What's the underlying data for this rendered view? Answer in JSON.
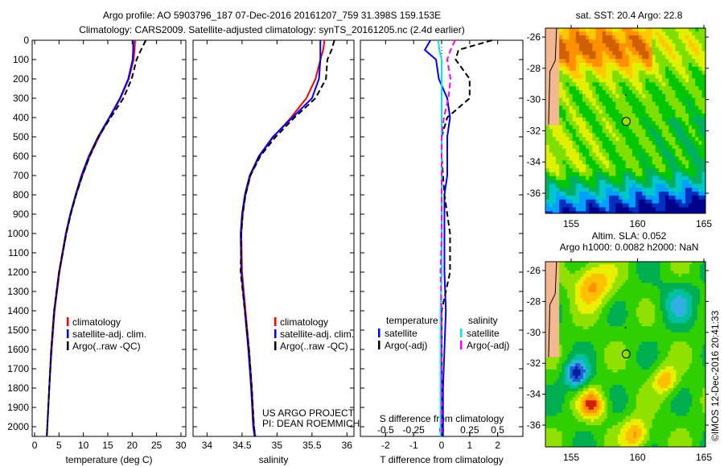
{
  "title_line1": "Argo profile: AO 5903796_187 07-Dec-2016 20161207_759 31.398S 159.153E",
  "title_line2": "Climatology: CARS2009. Satellite-adjusted climatology: synTS_20161205.nc (2.4d earlier)",
  "credit": "©IMOS 12-Dec-2016 20:41:33",
  "project_line1": "US ARGO PROJECT",
  "project_line2": "PI: DEAN ROEMMICH",
  "colors": {
    "climatology": "#ff0000",
    "satellite": "#0000ff",
    "argo": "#000000",
    "s_satellite": "#00e5ee",
    "s_argo": "#ff00ff"
  },
  "chart_data": [
    {
      "type": "line",
      "xlabel": "temperature (deg C)",
      "xlim": [
        -0.5,
        31
      ],
      "ylim": [
        2050,
        0
      ],
      "xticks": [
        "0",
        "5",
        "10",
        "15",
        "20",
        "25",
        "30"
      ],
      "yticks": [
        "0",
        "100",
        "200",
        "300",
        "400",
        "500",
        "600",
        "700",
        "800",
        "900",
        "1000",
        "1100",
        "1200",
        "1300",
        "1400",
        "1500",
        "1600",
        "1700",
        "1800",
        "1900",
        "2000"
      ],
      "legend": [
        "climatology",
        "satellite-adj. clim.",
        "Argo(..raw -QC)"
      ],
      "depth": [
        0,
        50,
        100,
        200,
        300,
        400,
        500,
        600,
        700,
        800,
        900,
        1000,
        1200,
        1400,
        1600,
        1800,
        2000,
        2050
      ],
      "series": [
        {
          "name": "climatology",
          "values": [
            20.6,
            20.5,
            20.3,
            19.3,
            17.6,
            15.4,
            13.2,
            11.3,
            9.8,
            8.5,
            7.4,
            6.5,
            5.1,
            4.1,
            3.5,
            3.0,
            2.6,
            2.5
          ]
        },
        {
          "name": "satellite-adj. clim.",
          "values": [
            20.2,
            20.2,
            20.1,
            19.2,
            17.5,
            15.3,
            13.0,
            11.1,
            9.6,
            8.4,
            7.3,
            6.4,
            5.0,
            4.0,
            3.4,
            3.0,
            2.6,
            2.5
          ]
        },
        {
          "name": "Argo(..raw -QC)",
          "values": [
            22.8,
            21.8,
            20.9,
            19.9,
            18.2,
            15.6,
            13.1,
            11.3,
            9.8,
            8.5,
            7.4,
            6.5,
            5.0,
            4.0,
            3.4,
            3.0,
            2.6,
            2.5
          ]
        }
      ]
    },
    {
      "type": "line",
      "xlabel": "salinity",
      "xlim": [
        33.8,
        36.1
      ],
      "ylim": [
        2050,
        0
      ],
      "xticks": [
        "34",
        "34.5",
        "35",
        "35.5",
        "36"
      ],
      "legend": [
        "climatology",
        "satellite-adj. clim.",
        "Argo(..raw -QC)"
      ],
      "depth": [
        0,
        50,
        100,
        200,
        300,
        400,
        500,
        600,
        700,
        800,
        900,
        1000,
        1200,
        1400,
        1600,
        1800,
        2000,
        2050
      ],
      "series": [
        {
          "name": "climatology",
          "values": [
            35.68,
            35.66,
            35.62,
            35.55,
            35.42,
            35.2,
            34.95,
            34.75,
            34.62,
            34.55,
            34.51,
            34.49,
            34.5,
            34.55,
            34.6,
            34.64,
            34.67,
            34.69
          ]
        },
        {
          "name": "satellite-adj. clim.",
          "values": [
            35.62,
            35.62,
            35.62,
            35.6,
            35.5,
            35.22,
            34.94,
            34.74,
            34.61,
            34.54,
            34.5,
            34.48,
            34.49,
            34.54,
            34.59,
            34.63,
            34.66,
            34.68
          ]
        },
        {
          "name": "Argo(..raw -QC)",
          "values": [
            35.82,
            35.78,
            35.72,
            35.7,
            35.55,
            35.25,
            34.98,
            34.76,
            34.62,
            34.55,
            34.51,
            34.49,
            34.48,
            34.54,
            34.6,
            34.64,
            34.67,
            34.69
          ]
        }
      ]
    },
    {
      "type": "line",
      "xlabel": "T difference from climatology",
      "xlabel2": "S difference from climatology",
      "xlim": [
        -2.9,
        2.9
      ],
      "ylim": [
        2050,
        0
      ],
      "xticks": [
        "-2",
        "-1",
        "0",
        "1",
        "2"
      ],
      "xticks2": [
        "-0.5",
        "-0.25",
        "0",
        "0.25",
        "0.5"
      ],
      "legend_temperature": {
        "title": "temperature",
        "items": [
          "satellite",
          "Argo(-adj)"
        ]
      },
      "legend_salinity": {
        "title": "salinity",
        "items": [
          "satellite",
          "Argo(-adj)"
        ]
      },
      "depth": [
        0,
        50,
        100,
        200,
        300,
        400,
        500,
        600,
        700,
        800,
        900,
        1000,
        1200,
        1400,
        1600,
        1800,
        2000,
        2050
      ],
      "series": [
        {
          "name": "temperature satellite",
          "values": [
            -0.4,
            -0.6,
            -0.2,
            -0.1,
            0.2,
            0.3,
            0.2,
            0.2,
            0.2,
            0.1,
            0.1,
            0.1,
            0.1,
            0.15,
            0.1,
            0.05,
            0.05,
            0.05
          ]
        },
        {
          "name": "temperature Argo(-adj)",
          "values": [
            1.8,
            0.6,
            0.5,
            1.0,
            1.0,
            0.2,
            0,
            0,
            0.05,
            0.1,
            0.2,
            0.3,
            0.3,
            0,
            0,
            0,
            0,
            0
          ]
        },
        {
          "name": "salinity satellite",
          "values": [
            -0.03,
            -0.02,
            0,
            0,
            0,
            0,
            0,
            0,
            0,
            0,
            0,
            0,
            0,
            -0.01,
            -0.01,
            -0.01,
            -0.01,
            -0.01
          ]
        },
        {
          "name": "salinity Argo(-adj)",
          "values": [
            0.12,
            0.08,
            0.05,
            0.08,
            0.06,
            0.02,
            0,
            0,
            0,
            0,
            0,
            0,
            -0.01,
            0,
            0,
            0,
            0,
            0
          ]
        }
      ]
    }
  ],
  "maps": [
    {
      "title_lines": [
        "sat. SST: 20.4  Argo: 22.8"
      ],
      "lon_ticks": [
        "155",
        "160",
        "165"
      ],
      "lat_ticks": [
        "-26",
        "-28",
        "-30",
        "-32",
        "-34",
        "-36"
      ],
      "kind": "sst"
    },
    {
      "title_lines": [
        "Altim. SLA: 0.052",
        "Argo h1000: 0.0082 h2000: NaN"
      ],
      "lon_ticks": [
        "155",
        "160",
        "165"
      ],
      "lat_ticks": [
        "-26",
        "-28",
        "-30",
        "-32",
        "-34",
        "-36"
      ],
      "kind": "sla"
    }
  ]
}
